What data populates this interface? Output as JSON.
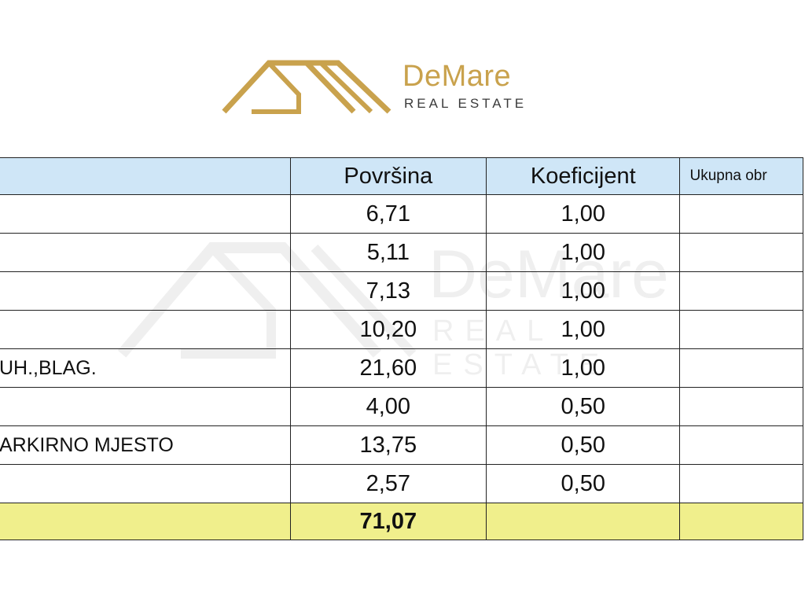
{
  "logo": {
    "brand": "DeMare",
    "subtitle": "REAL ESTATE",
    "gold_color": "#c9a24d"
  },
  "table": {
    "headers": [
      "",
      "Površina",
      "Koeficijent",
      "Ukupna obr"
    ],
    "rows": [
      {
        "label": "",
        "area": "6,71",
        "coef": "1,00",
        "total": ""
      },
      {
        "label": "",
        "area": "5,11",
        "coef": "1,00",
        "total": ""
      },
      {
        "label": "",
        "area": "7,13",
        "coef": "1,00",
        "total": ""
      },
      {
        "label": "",
        "area": "10,20",
        "coef": "1,00",
        "total": ""
      },
      {
        "label": "UH.,BLAG.",
        "area": "21,60",
        "coef": "1,00",
        "total": ""
      },
      {
        "label": "",
        "area": "4,00",
        "coef": "0,50",
        "total": ""
      },
      {
        "label": "ARKIRNO MJESTO",
        "area": "13,75",
        "coef": "0,50",
        "total": ""
      },
      {
        "label": "",
        "area": "2,57",
        "coef": "0,50",
        "total": ""
      }
    ],
    "total_row": {
      "label": "",
      "area": "71,07",
      "coef": "",
      "total": ""
    },
    "header_color": "#cfe6f7",
    "total_color": "#f0ef8c"
  }
}
